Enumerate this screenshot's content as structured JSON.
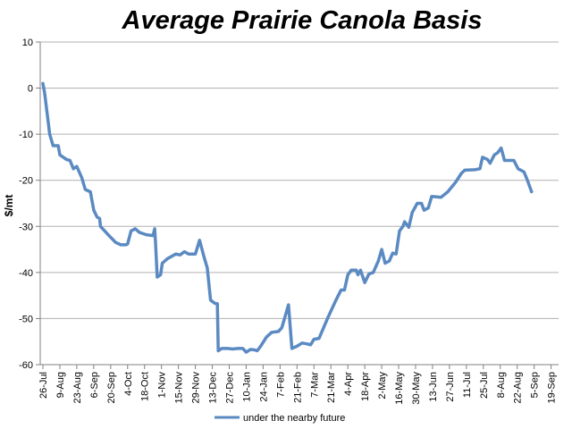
{
  "chart_data": {
    "type": "line",
    "title": "Average Prairie Canola Basis",
    "ylabel": "$/mt",
    "xlabel": "",
    "ylim": [
      -60,
      10
    ],
    "yticks": [
      10,
      0,
      -10,
      -20,
      -30,
      -40,
      -50,
      -60
    ],
    "grid": "horizontal",
    "legend_position": "bottom",
    "color": "#5b8ac2",
    "categories": [
      "26-Jul",
      "9-Aug",
      "23-Aug",
      "6-Sep",
      "20-Sep",
      "4-Oct",
      "18-Oct",
      "1-Nov",
      "15-Nov",
      "29-Nov",
      "13-Dec",
      "27-Dec",
      "10-Jan",
      "24-Jan",
      "7-Feb",
      "21-Feb",
      "7-Mar",
      "21-Mar",
      "4-Apr",
      "18-Apr",
      "2-May",
      "16-May",
      "30-May",
      "13-Jun",
      "27-Jun",
      "11-Jul",
      "25-Jul",
      "8-Aug",
      "22-Aug",
      "5-Sep",
      "19-Sep"
    ],
    "series": [
      {
        "name": "under the nearby future",
        "points": [
          [
            0,
            1
          ],
          [
            0.1,
            -1
          ],
          [
            0.4,
            -10
          ],
          [
            0.6,
            -12.5
          ],
          [
            0.9,
            -12.5
          ],
          [
            1.0,
            -14.5
          ],
          [
            1.4,
            -15.5
          ],
          [
            1.6,
            -15.7
          ],
          [
            1.8,
            -17.5
          ],
          [
            2.0,
            -17
          ],
          [
            2.3,
            -19.5
          ],
          [
            2.5,
            -22
          ],
          [
            2.8,
            -22.5
          ],
          [
            3.0,
            -26.5
          ],
          [
            3.2,
            -28
          ],
          [
            3.35,
            -28.3
          ],
          [
            3.4,
            -30
          ],
          [
            3.9,
            -32
          ],
          [
            4.3,
            -33.5
          ],
          [
            4.6,
            -34
          ],
          [
            4.9,
            -34
          ],
          [
            5.0,
            -33.8
          ],
          [
            5.2,
            -31
          ],
          [
            5.45,
            -30.5
          ],
          [
            5.7,
            -31.3
          ],
          [
            6.1,
            -31.8
          ],
          [
            6.5,
            -32
          ],
          [
            6.6,
            -30.5
          ],
          [
            6.65,
            -33.5
          ],
          [
            6.75,
            -41
          ],
          [
            6.95,
            -40.5
          ],
          [
            7.05,
            -38
          ],
          [
            7.35,
            -37
          ],
          [
            7.6,
            -36.5
          ],
          [
            7.85,
            -36
          ],
          [
            8.1,
            -36.2
          ],
          [
            8.35,
            -35.5
          ],
          [
            8.6,
            -36
          ],
          [
            9.0,
            -36
          ],
          [
            9.25,
            -33
          ],
          [
            9.5,
            -36.5
          ],
          [
            9.7,
            -39
          ],
          [
            9.9,
            -46
          ],
          [
            10.15,
            -46.7
          ],
          [
            10.3,
            -46.8
          ],
          [
            10.35,
            -57
          ],
          [
            10.55,
            -56.5
          ],
          [
            10.9,
            -56.5
          ],
          [
            11.2,
            -56.6
          ],
          [
            11.5,
            -56.5
          ],
          [
            11.8,
            -56.5
          ],
          [
            12.0,
            -57.3
          ],
          [
            12.25,
            -56.7
          ],
          [
            12.5,
            -56.8
          ],
          [
            12.65,
            -57
          ],
          [
            12.85,
            -56
          ],
          [
            13.2,
            -54
          ],
          [
            13.5,
            -53
          ],
          [
            13.9,
            -52.8
          ],
          [
            14.1,
            -52
          ],
          [
            14.5,
            -47
          ],
          [
            14.7,
            -56.5
          ],
          [
            15.0,
            -56
          ],
          [
            15.3,
            -55.3
          ],
          [
            15.6,
            -55.5
          ],
          [
            15.8,
            -55.7
          ],
          [
            16.0,
            -54.5
          ],
          [
            16.3,
            -54.3
          ],
          [
            16.8,
            -50
          ],
          [
            17.3,
            -46
          ],
          [
            17.6,
            -43.8
          ],
          [
            17.8,
            -43.8
          ],
          [
            18.0,
            -40.5
          ],
          [
            18.2,
            -39.5
          ],
          [
            18.5,
            -39.5
          ],
          [
            18.6,
            -40.5
          ],
          [
            18.75,
            -39.5
          ],
          [
            19.0,
            -42.2
          ],
          [
            19.25,
            -40.3
          ],
          [
            19.5,
            -40
          ],
          [
            19.8,
            -37.5
          ],
          [
            20.0,
            -35
          ],
          [
            20.2,
            -38
          ],
          [
            20.45,
            -37.5
          ],
          [
            20.65,
            -35.8
          ],
          [
            20.85,
            -36
          ],
          [
            21.05,
            -31
          ],
          [
            21.25,
            -30
          ],
          [
            21.35,
            -29
          ],
          [
            21.6,
            -30.2
          ],
          [
            21.8,
            -27
          ],
          [
            22.1,
            -25
          ],
          [
            22.35,
            -25
          ],
          [
            22.5,
            -26.5
          ],
          [
            22.75,
            -26
          ],
          [
            22.95,
            -23.5
          ],
          [
            23.5,
            -23.7
          ],
          [
            23.9,
            -22.5
          ],
          [
            24.35,
            -20.5
          ],
          [
            24.7,
            -18.5
          ],
          [
            24.9,
            -17.8
          ],
          [
            25.5,
            -17.7
          ],
          [
            25.8,
            -17.5
          ],
          [
            25.95,
            -15
          ],
          [
            26.25,
            -15.5
          ],
          [
            26.4,
            -16.3
          ],
          [
            26.65,
            -14.5
          ],
          [
            26.85,
            -14
          ],
          [
            27.05,
            -13
          ],
          [
            27.25,
            -15.7
          ],
          [
            27.8,
            -15.7
          ],
          [
            28.05,
            -17.5
          ],
          [
            28.4,
            -18.2
          ],
          [
            28.6,
            -20
          ],
          [
            28.85,
            -22.5
          ]
        ]
      }
    ]
  }
}
